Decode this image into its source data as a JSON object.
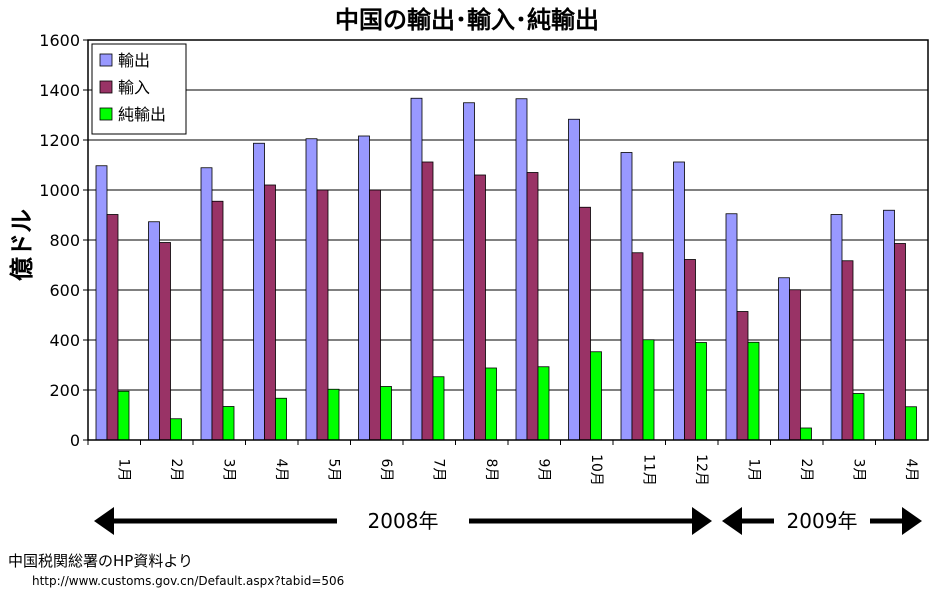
{
  "chart_data": {
    "type": "bar",
    "title": "中国の輸出･輸入･純輸出",
    "ylabel": "億ドル",
    "xlabel": "",
    "ylim": [
      0,
      1600
    ],
    "yticks": [
      0,
      200,
      400,
      600,
      800,
      1000,
      1200,
      1400,
      1600
    ],
    "grid": true,
    "legend_position": "top-left",
    "categories": [
      "1月",
      "2月",
      "3月",
      "4月",
      "5月",
      "6月",
      "7月",
      "8月",
      "9月",
      "10月",
      "11月",
      "12月",
      "1月",
      "2月",
      "3月",
      "4月"
    ],
    "series": [
      {
        "name": "輸出",
        "color": "#9999ff",
        "values": [
          1097,
          873,
          1089,
          1187,
          1205,
          1216,
          1367,
          1349,
          1365,
          1283,
          1150,
          1112,
          905,
          649,
          902,
          919
        ]
      },
      {
        "name": "輸入",
        "color": "#993366",
        "values": [
          902,
          790,
          955,
          1020,
          1000,
          1000,
          1112,
          1060,
          1070,
          931,
          749,
          722,
          514,
          601,
          717,
          786
        ]
      },
      {
        "name": "純輸出",
        "color": "#00ff00",
        "values": [
          195,
          85,
          134,
          167,
          203,
          214,
          253,
          288,
          293,
          353,
          401,
          390,
          391,
          48,
          186,
          133
        ]
      }
    ],
    "year_labels": [
      {
        "label": "2008年",
        "from_index": 0,
        "to_index": 11
      },
      {
        "label": "2009年",
        "from_index": 12,
        "to_index": 15
      }
    ]
  },
  "source": {
    "line1": "中国税関総署のHP資料より",
    "line2": "http://www.customs.gov.cn/Default.aspx?tabid=506"
  }
}
